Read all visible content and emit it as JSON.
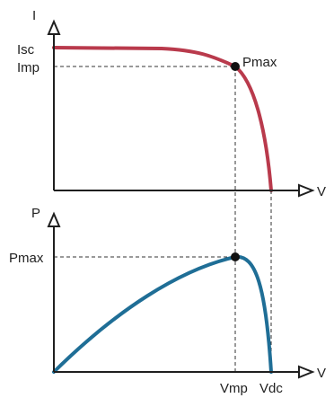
{
  "top_chart": {
    "y_axis_label": "I",
    "x_axis_label": "V",
    "y_tick_isc": "Isc",
    "y_tick_imp": "Imp",
    "point_label": "Pmax",
    "curve_color": "#b93a4c"
  },
  "bottom_chart": {
    "y_axis_label": "P",
    "x_axis_label": "V",
    "y_tick_pmax": "Pmax",
    "x_tick_vmp": "Vmp",
    "x_tick_vdc": "Vdc",
    "curve_color": "#1f6e96"
  }
}
